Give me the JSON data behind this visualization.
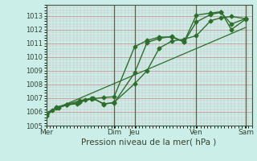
{
  "xlabel": "Pression niveau de la mer( hPa )",
  "bg_color": "#cceee8",
  "line_color": "#2d6e2d",
  "ylim": [
    1005,
    1013.5
  ],
  "xlim": [
    0,
    100
  ],
  "yticks": [
    1005,
    1006,
    1007,
    1008,
    1009,
    1010,
    1011,
    1012,
    1013
  ],
  "xtick_positions": [
    0,
    33,
    43,
    73,
    97
  ],
  "xtick_labels": [
    "Mer",
    "Dim",
    "Jeu",
    "Ven",
    "Sam"
  ],
  "line1_x": [
    0,
    3,
    6,
    10,
    15,
    19,
    23,
    28,
    33,
    43,
    49,
    55,
    61,
    67,
    73,
    80,
    85,
    90,
    97
  ],
  "line1_y": [
    1005.7,
    1006.1,
    1006.3,
    1006.5,
    1006.6,
    1006.85,
    1007.0,
    1006.55,
    1006.7,
    1008.05,
    1009.0,
    1010.65,
    1011.15,
    1011.3,
    1011.55,
    1012.65,
    1012.85,
    1012.95,
    1012.8
  ],
  "line2_x": [
    0,
    5,
    10,
    16,
    22,
    28,
    33,
    43,
    49,
    55,
    61,
    67,
    73,
    80,
    85,
    90,
    97
  ],
  "line2_y": [
    1005.8,
    1006.3,
    1006.5,
    1006.7,
    1006.95,
    1007.05,
    1007.1,
    1010.75,
    1011.2,
    1011.45,
    1011.45,
    1011.1,
    1012.55,
    1013.1,
    1013.25,
    1012.4,
    1012.8
  ],
  "line3_x": [
    0,
    5,
    10,
    16,
    22,
    28,
    33,
    43,
    49,
    55,
    61,
    67,
    73,
    80,
    85,
    90,
    97
  ],
  "line3_y": [
    1005.8,
    1006.35,
    1006.55,
    1006.8,
    1007.0,
    1006.6,
    1006.65,
    1008.85,
    1011.05,
    1011.35,
    1011.5,
    1011.1,
    1013.05,
    1013.2,
    1013.3,
    1012.0,
    1012.75
  ],
  "trend_x": [
    0,
    97
  ],
  "trend_y": [
    1005.95,
    1012.15
  ],
  "vlines": [
    0,
    33,
    43,
    73,
    97
  ],
  "minor_x_step": 1.666,
  "marker": "D",
  "markersize": 2.5,
  "linewidth": 1.0
}
